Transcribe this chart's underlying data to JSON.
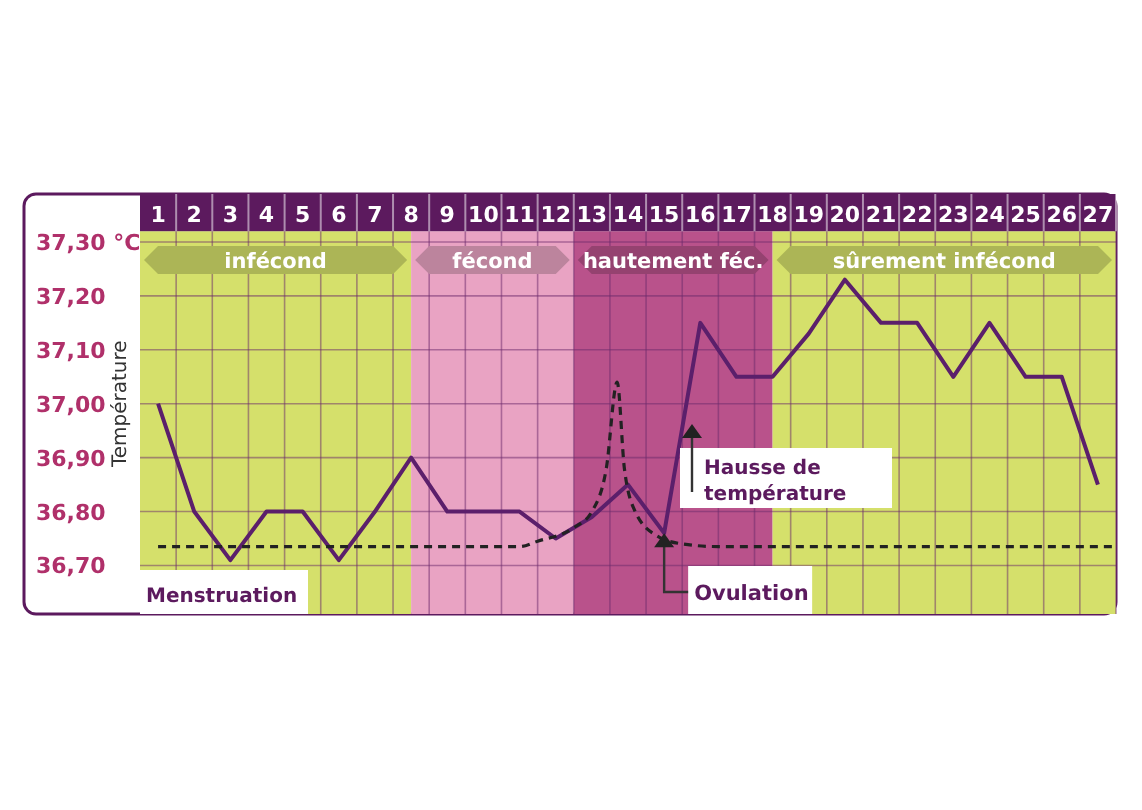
{
  "chart_data": {
    "type": "line",
    "ylabel": "Température",
    "x": [
      1,
      2,
      3,
      4,
      5,
      6,
      7,
      8,
      9,
      10,
      11,
      12,
      13,
      14,
      15,
      16,
      17,
      18,
      19,
      20,
      21,
      22,
      23,
      24,
      25,
      26,
      27
    ],
    "xlim": [
      0.5,
      27.5
    ],
    "xticks": [
      1,
      2,
      3,
      4,
      5,
      6,
      7,
      8,
      9,
      10,
      11,
      12,
      13,
      14,
      15,
      16,
      17,
      18,
      19,
      20,
      21,
      22,
      23,
      24,
      25,
      26,
      27
    ],
    "ylim": [
      36.61,
      37.32
    ],
    "yticks": [
      {
        "value": 36.7,
        "label": "36,70"
      },
      {
        "value": 36.8,
        "label": "36,80"
      },
      {
        "value": 36.9,
        "label": "36,90"
      },
      {
        "value": 37.0,
        "label": "37,00"
      },
      {
        "value": 37.1,
        "label": "37,10"
      },
      {
        "value": 37.2,
        "label": "37,20"
      },
      {
        "value": 37.3,
        "label": "37,30 °C"
      }
    ],
    "grid": true,
    "series": [
      {
        "color": "#5b1f6b",
        "line_style": "solid",
        "values": [
          37.0,
          36.8,
          36.71,
          36.8,
          36.8,
          36.71,
          36.8,
          36.9,
          36.8,
          36.8,
          36.8,
          36.75,
          36.79,
          36.85,
          36.76,
          37.15,
          37.05,
          37.05,
          37.13,
          37.23,
          37.15,
          37.15,
          37.05,
          37.15,
          37.05,
          37.05,
          36.85
        ]
      },
      {
        "color": "#222222",
        "line_style": "dashed",
        "x": [
          1,
          11,
          11.5,
          12.5,
          13,
          13.4,
          13.7,
          13.9,
          14.2,
          14.8,
          15.5,
          16.5,
          27.5
        ],
        "values": [
          36.735,
          36.735,
          36.745,
          36.77,
          36.8,
          36.88,
          37.04,
          36.88,
          36.8,
          36.755,
          36.74,
          36.735,
          36.735
        ]
      }
    ],
    "bands": [
      {
        "axis": "x",
        "from": 0.5,
        "to": 8,
        "label": "infécond",
        "color": "#d5e06b"
      },
      {
        "axis": "x",
        "from": 8,
        "to": 12.5,
        "label": "fécond",
        "color": "#e9a3c3"
      },
      {
        "axis": "x",
        "from": 12.5,
        "to": 18,
        "label": "hautement féc.",
        "color": "#b9528b"
      },
      {
        "axis": "x",
        "from": 18,
        "to": 27.5,
        "label": "sûrement infécond",
        "color": "#d5e06b"
      }
    ],
    "annotations": [
      "Menstruation",
      "Hausse de température",
      {
        "text": "Ovulation",
        "x": 15,
        "y": 36.76
      }
    ]
  }
}
